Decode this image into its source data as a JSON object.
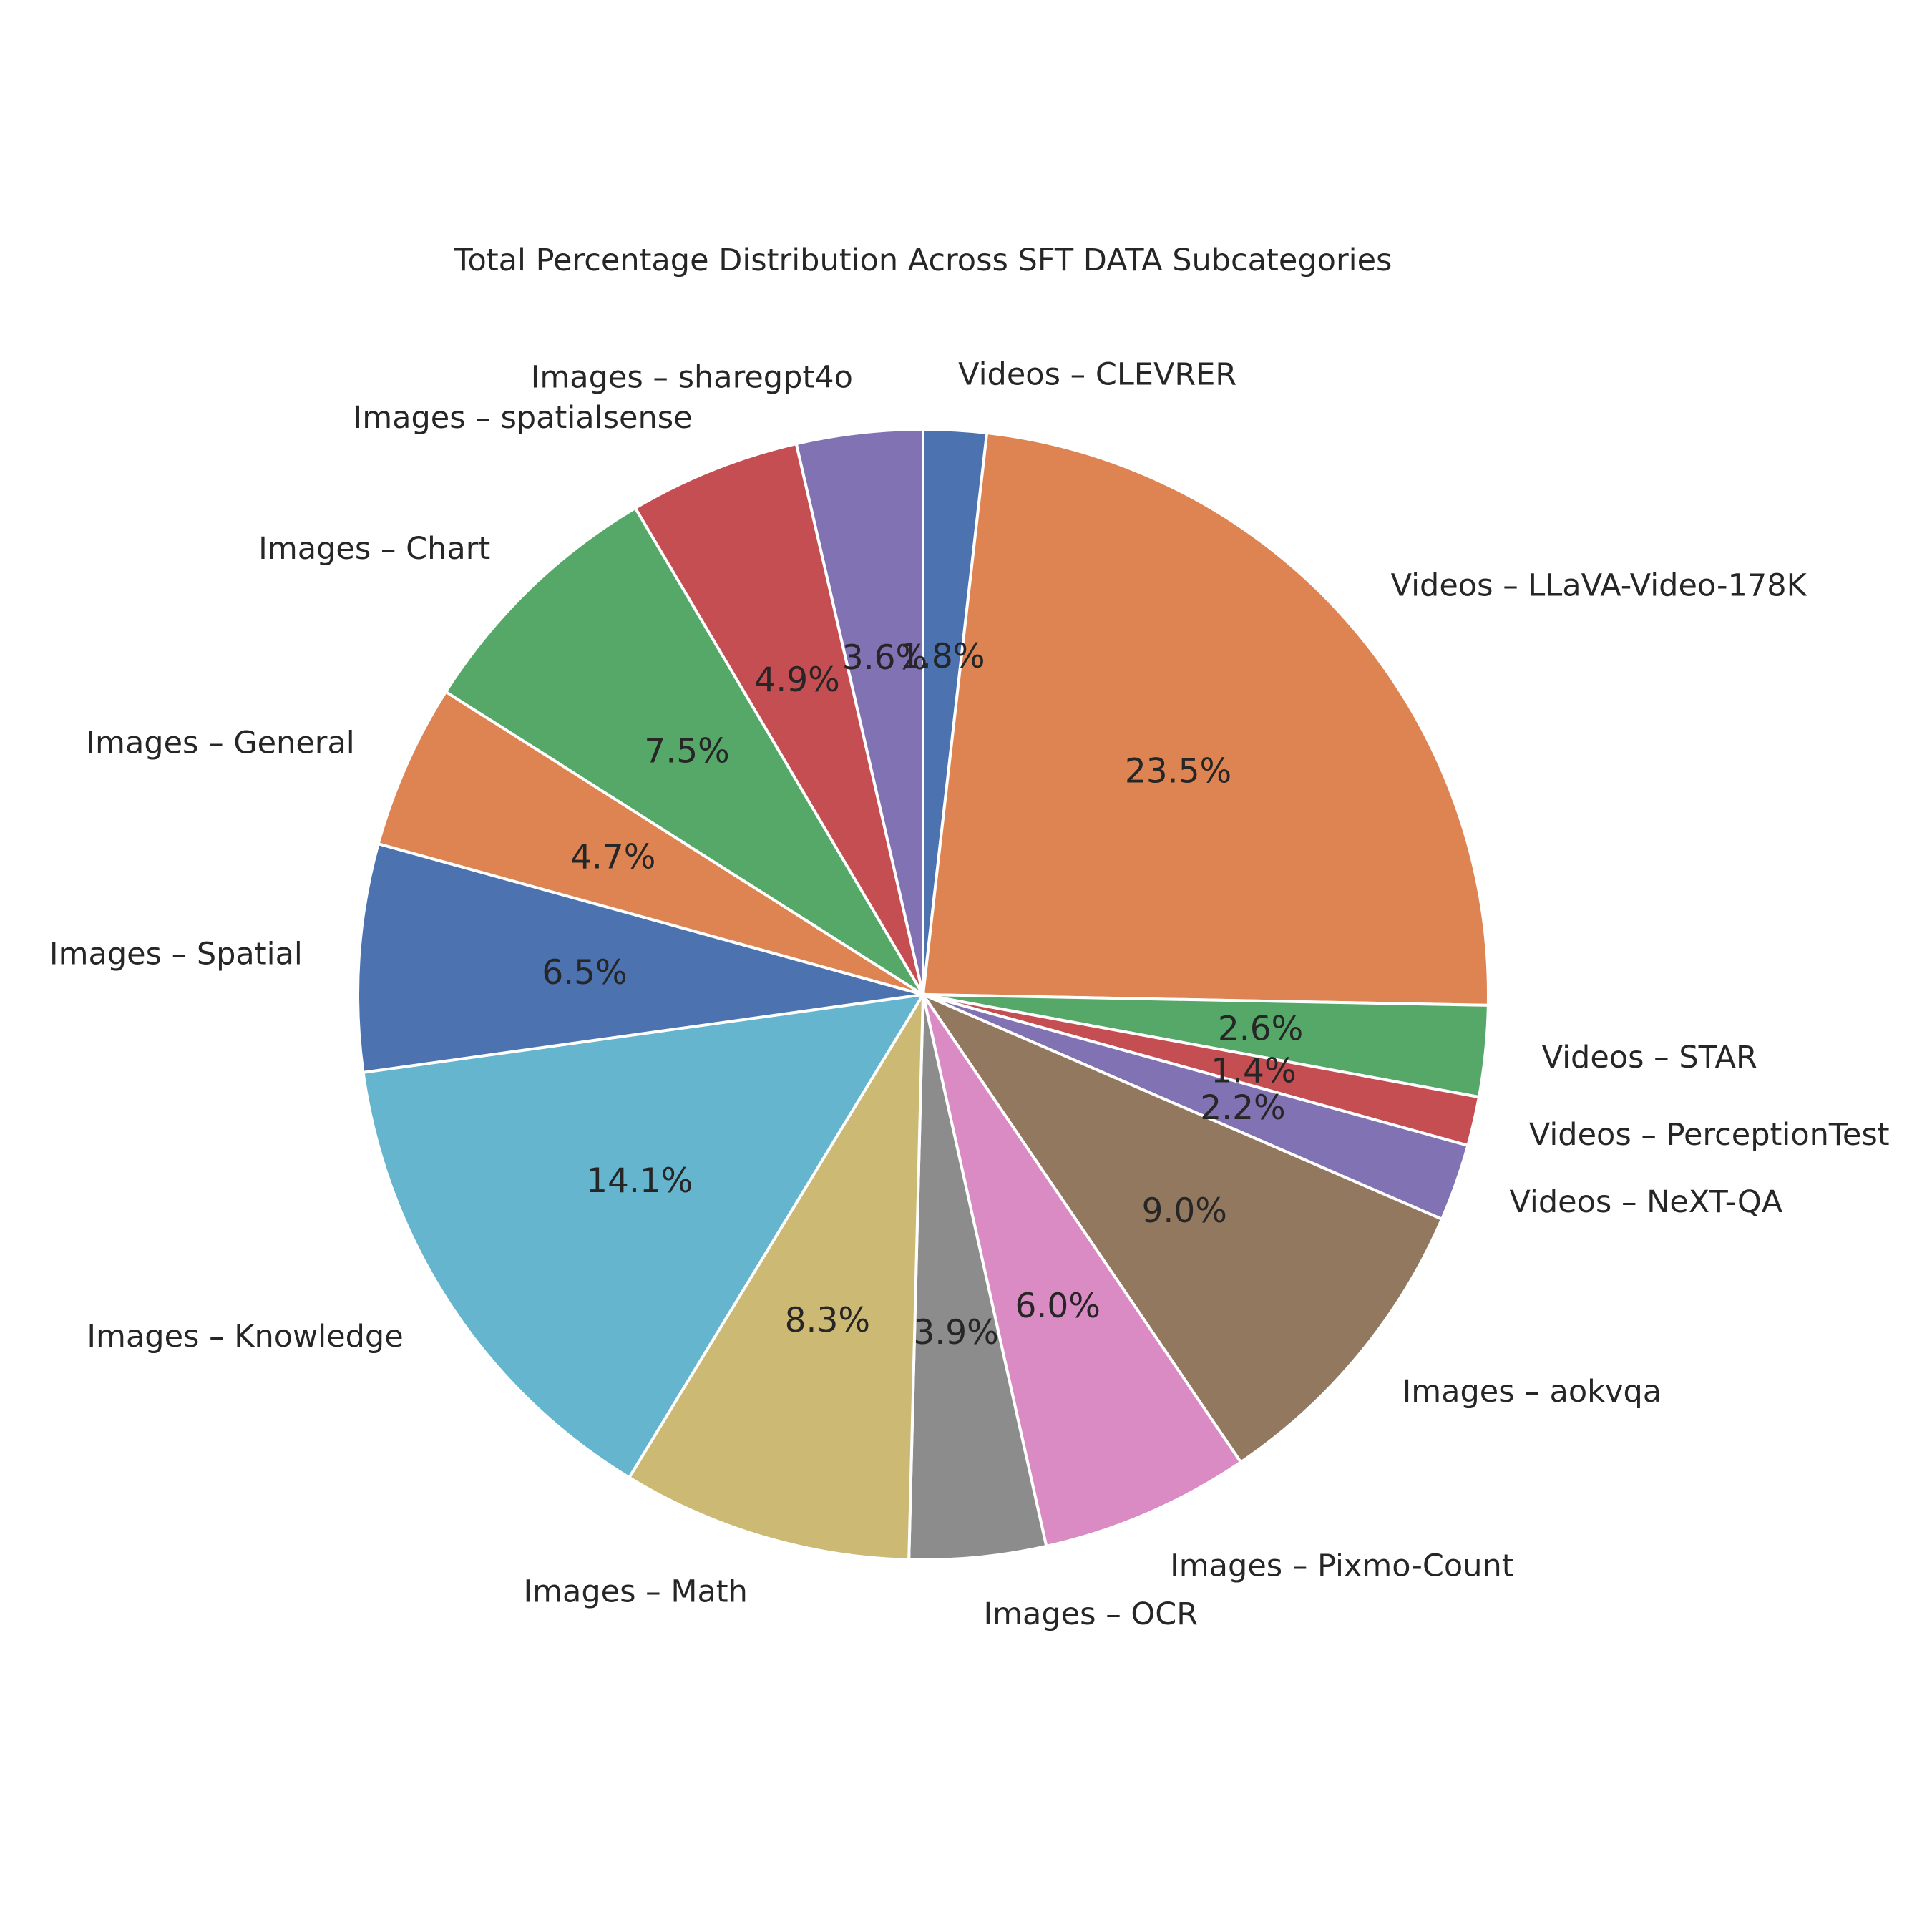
{
  "chart_data": {
    "type": "pie",
    "title": "Total Percentage Distribution Across SFT DATA Subcategories",
    "start_angle_deg": 90,
    "direction": "clockwise",
    "slices": [
      {
        "label": "Videos – CLEVRER",
        "value": 1.8,
        "pct_text": "1.8%",
        "color": "#4c72b0"
      },
      {
        "label": "Videos – LLaVA-Video-178K",
        "value": 23.5,
        "pct_text": "23.5%",
        "color": "#dd8452"
      },
      {
        "label": "Videos – STAR",
        "value": 2.6,
        "pct_text": "2.6%",
        "color": "#55a868"
      },
      {
        "label": "Videos – PerceptionTest",
        "value": 1.4,
        "pct_text": "1.4%",
        "color": "#c44e52"
      },
      {
        "label": "Videos – NeXT-QA",
        "value": 2.2,
        "pct_text": "2.2%",
        "color": "#8172b3"
      },
      {
        "label": "Images – aokvqa",
        "value": 9.0,
        "pct_text": "9.0%",
        "color": "#937860"
      },
      {
        "label": "Images – Pixmo-Count",
        "value": 6.0,
        "pct_text": "6.0%",
        "color": "#da8bc3"
      },
      {
        "label": "Images – OCR",
        "value": 3.9,
        "pct_text": "3.9%",
        "color": "#8c8c8c"
      },
      {
        "label": "Images – Math",
        "value": 8.3,
        "pct_text": "8.3%",
        "color": "#ccb974"
      },
      {
        "label": "Images – Knowledge",
        "value": 14.1,
        "pct_text": "14.1%",
        "color": "#64b5cd"
      },
      {
        "label": "Images – Spatial",
        "value": 6.5,
        "pct_text": "6.5%",
        "color": "#4c72b0"
      },
      {
        "label": "Images – General",
        "value": 4.7,
        "pct_text": "4.7%",
        "color": "#dd8452"
      },
      {
        "label": "Images – Chart",
        "value": 7.5,
        "pct_text": "7.5%",
        "color": "#55a868"
      },
      {
        "label": "Images – spatialsense",
        "value": 4.9,
        "pct_text": "4.9%",
        "color": "#c44e52"
      },
      {
        "label": "Images – sharegpt4o",
        "value": 3.6,
        "pct_text": "3.6%",
        "color": "#8172b3"
      }
    ],
    "legend": "none (labels placed around pie)"
  }
}
